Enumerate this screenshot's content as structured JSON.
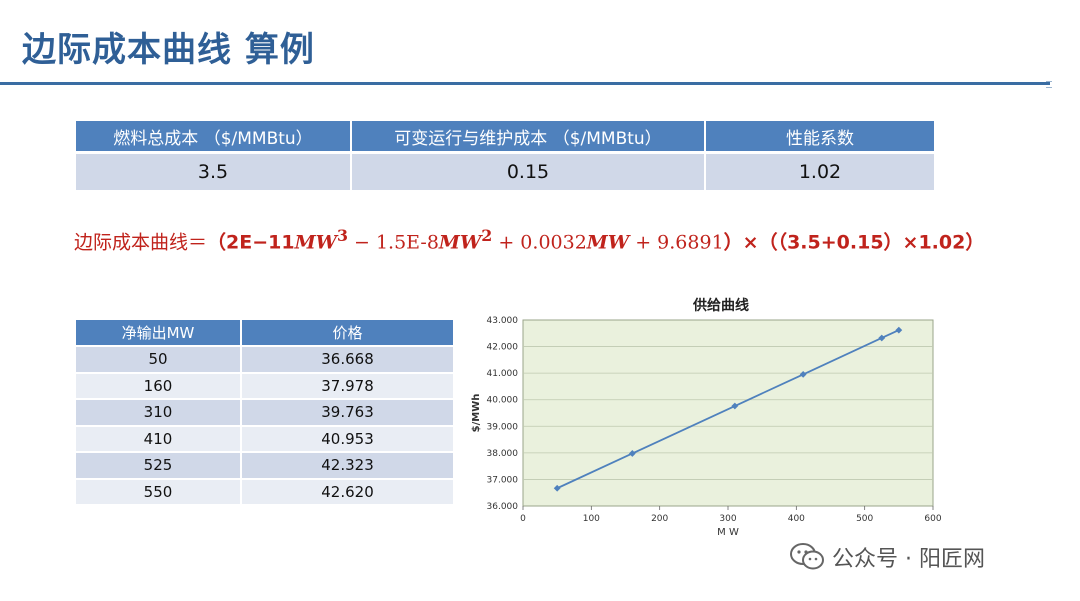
{
  "slide": {
    "title": "边际成本曲线 算例"
  },
  "params_table": {
    "headers": [
      "燃料总成本 （$/MMBtu）",
      "可变运行与维护成本 （$/MMBtu）",
      "性能系数"
    ],
    "values": [
      "3.5",
      "0.15",
      "1.02"
    ]
  },
  "formula": {
    "label": "边际成本曲线＝",
    "open": "（2E−11",
    "mw": "MW",
    "exp3": "3",
    "t2a": " − 1.5E-8",
    "exp2": "2",
    "t3a": " + 0.0032",
    "t4": " + 9.6891",
    "tail": "）×（（3.5+0.15）×1.02）"
  },
  "supply_table": {
    "headers": [
      "净输出MW",
      "价格"
    ],
    "rows": [
      [
        "50",
        "36.668"
      ],
      [
        "160",
        "37.978"
      ],
      [
        "310",
        "39.763"
      ],
      [
        "410",
        "40.953"
      ],
      [
        "525",
        "42.323"
      ],
      [
        "550",
        "42.620"
      ]
    ]
  },
  "chart_data": {
    "type": "line",
    "title": "供给曲线",
    "xlabel": "M W",
    "ylabel": "$/MWh",
    "x": [
      50,
      160,
      310,
      410,
      525,
      550
    ],
    "y": [
      36.668,
      37.978,
      39.763,
      40.953,
      42.323,
      42.62
    ],
    "xlim": [
      0,
      600
    ],
    "ylim": [
      36,
      43
    ],
    "x_ticks": [
      "0",
      "100",
      "200",
      "300",
      "400",
      "500",
      "600"
    ],
    "y_ticks": [
      "36.000",
      "37.000",
      "38.000",
      "39.000",
      "40.000",
      "41.000",
      "42.000",
      "43.000"
    ],
    "grid": true,
    "legend": "none",
    "colors": {
      "line": "#4f81bd",
      "plot_bg": "#eaf1dd",
      "grid": "#bfc9b0"
    }
  },
  "watermark": {
    "icon": "wechat-icon",
    "text": "公众号 · 阳匠网"
  }
}
